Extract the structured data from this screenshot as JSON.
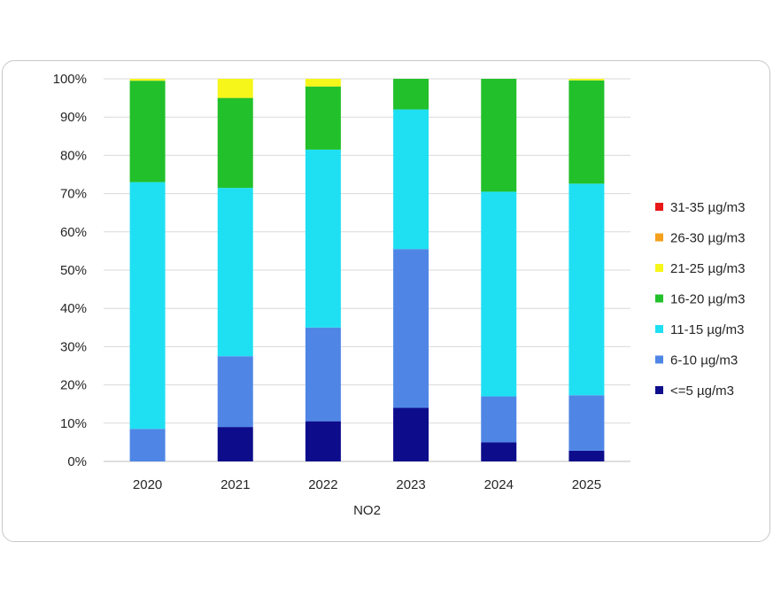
{
  "chart_data": {
    "type": "bar",
    "stacked": true,
    "percent": true,
    "categories": [
      "2020",
      "2021",
      "2022",
      "2023",
      "2024",
      "2025"
    ],
    "series": [
      {
        "name": "<=5 µg/m3",
        "color": "#0d0d8c",
        "values": [
          0,
          9,
          10.5,
          14,
          5,
          2.8
        ]
      },
      {
        "name": "6-10 µg/m3",
        "color": "#4f86e6",
        "values": [
          8.5,
          18.5,
          24.5,
          41.5,
          12,
          14.5
        ]
      },
      {
        "name": "11-15 µg/m3",
        "color": "#1fe0f2",
        "values": [
          64.5,
          44,
          46.5,
          36.5,
          53.5,
          55.3
        ]
      },
      {
        "name": "16-20 µg/m3",
        "color": "#22c02a",
        "values": [
          26.5,
          23.5,
          16.5,
          8,
          29.5,
          27
        ]
      },
      {
        "name": "21-25 µg/m3",
        "color": "#f6f61a",
        "values": [
          0.5,
          5,
          2,
          0,
          0,
          0.4
        ]
      },
      {
        "name": "26-30 µg/m3",
        "color": "#f4a01c",
        "values": [
          0,
          0,
          0,
          0,
          0,
          0
        ]
      },
      {
        "name": "31-35 µg/m3",
        "color": "#e81818",
        "values": [
          0,
          0,
          0,
          0,
          0,
          0
        ]
      }
    ],
    "y_ticks": [
      "0%",
      "10%",
      "20%",
      "30%",
      "40%",
      "50%",
      "60%",
      "70%",
      "80%",
      "90%",
      "100%"
    ],
    "ylim": [
      0,
      100
    ],
    "xlabel": "NO2",
    "ylabel": "",
    "grid": true,
    "legend_position": "right"
  }
}
